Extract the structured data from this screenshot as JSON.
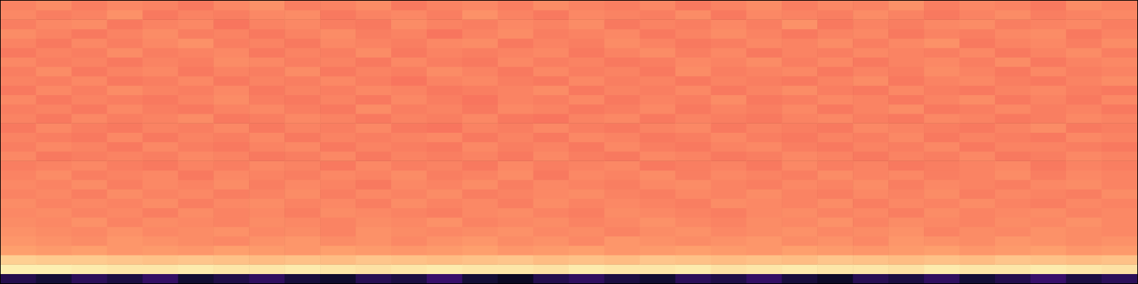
{
  "chart_data": {
    "type": "heatmap",
    "tick_labels": false,
    "color_range": [
      0,
      1
    ],
    "cells": [
      [
        0.74,
        0.76,
        0.73,
        0.75,
        0.74,
        0.72,
        0.75,
        0.77,
        0.73,
        0.74,
        0.76,
        0.72,
        0.74,
        0.75,
        0.73,
        0.76,
        0.74,
        0.73,
        0.75,
        0.72,
        0.74,
        0.76,
        0.73,
        0.75,
        0.74,
        0.77,
        0.73,
        0.75,
        0.74,
        0.72,
        0.76,
        0.74
      ],
      [
        0.75,
        0.73,
        0.74,
        0.77,
        0.72,
        0.74,
        0.73,
        0.75,
        0.76,
        0.72,
        0.74,
        0.75,
        0.73,
        0.77,
        0.74,
        0.72,
        0.75,
        0.74,
        0.73,
        0.76,
        0.72,
        0.75,
        0.74,
        0.73,
        0.76,
        0.74,
        0.72,
        0.74,
        0.76,
        0.73,
        0.74,
        0.75
      ],
      [
        0.73,
        0.75,
        0.76,
        0.72,
        0.74,
        0.75,
        0.71,
        0.74,
        0.75,
        0.73,
        0.72,
        0.76,
        0.74,
        0.73,
        0.75,
        0.74,
        0.76,
        0.72,
        0.74,
        0.73,
        0.75,
        0.73,
        0.77,
        0.72,
        0.74,
        0.73,
        0.75,
        0.76,
        0.73,
        0.74,
        0.75,
        0.73
      ],
      [
        0.76,
        0.74,
        0.72,
        0.74,
        0.76,
        0.73,
        0.74,
        0.72,
        0.74,
        0.76,
        0.73,
        0.74,
        0.71,
        0.74,
        0.76,
        0.73,
        0.74,
        0.75,
        0.72,
        0.74,
        0.76,
        0.74,
        0.72,
        0.74,
        0.75,
        0.72,
        0.74,
        0.73,
        0.75,
        0.76,
        0.72,
        0.74
      ],
      [
        0.74,
        0.72,
        0.75,
        0.73,
        0.75,
        0.77,
        0.73,
        0.74,
        0.72,
        0.75,
        0.74,
        0.73,
        0.75,
        0.76,
        0.72,
        0.74,
        0.73,
        0.76,
        0.74,
        0.72,
        0.73,
        0.75,
        0.74,
        0.76,
        0.73,
        0.75,
        0.77,
        0.72,
        0.74,
        0.75,
        0.73,
        0.76
      ],
      [
        0.72,
        0.74,
        0.73,
        0.76,
        0.73,
        0.74,
        0.75,
        0.72,
        0.74,
        0.73,
        0.76,
        0.72,
        0.74,
        0.73,
        0.74,
        0.75,
        0.72,
        0.74,
        0.76,
        0.73,
        0.75,
        0.72,
        0.74,
        0.73,
        0.75,
        0.74,
        0.73,
        0.75,
        0.72,
        0.74,
        0.76,
        0.73
      ],
      [
        0.75,
        0.73,
        0.74,
        0.72,
        0.74,
        0.73,
        0.76,
        0.75,
        0.73,
        0.74,
        0.72,
        0.75,
        0.73,
        0.72,
        0.75,
        0.73,
        0.74,
        0.72,
        0.73,
        0.75,
        0.74,
        0.76,
        0.73,
        0.75,
        0.72,
        0.74,
        0.75,
        0.73,
        0.76,
        0.72,
        0.74,
        0.75
      ],
      [
        0.73,
        0.76,
        0.72,
        0.74,
        0.75,
        0.72,
        0.74,
        0.73,
        0.76,
        0.72,
        0.74,
        0.73,
        0.76,
        0.74,
        0.72,
        0.75,
        0.73,
        0.74,
        0.72,
        0.76,
        0.73,
        0.74,
        0.75,
        0.72,
        0.74,
        0.73,
        0.76,
        0.74,
        0.72,
        0.75,
        0.73,
        0.74
      ],
      [
        0.74,
        0.73,
        0.75,
        0.72,
        0.73,
        0.75,
        0.72,
        0.74,
        0.73,
        0.75,
        0.73,
        0.71,
        0.74,
        0.75,
        0.73,
        0.72,
        0.75,
        0.73,
        0.74,
        0.72,
        0.74,
        0.73,
        0.72,
        0.74,
        0.76,
        0.72,
        0.74,
        0.75,
        0.73,
        0.72,
        0.74,
        0.76
      ],
      [
        0.72,
        0.75,
        0.73,
        0.76,
        0.74,
        0.73,
        0.75,
        0.72,
        0.74,
        0.73,
        0.75,
        0.74,
        0.72,
        0.73,
        0.74,
        0.76,
        0.72,
        0.74,
        0.73,
        0.75,
        0.72,
        0.74,
        0.76,
        0.73,
        0.72,
        0.75,
        0.73,
        0.72,
        0.74,
        0.75,
        0.73,
        0.72
      ],
      [
        0.75,
        0.72,
        0.74,
        0.73,
        0.72,
        0.74,
        0.76,
        0.73,
        0.72,
        0.74,
        0.72,
        0.75,
        0.73,
        0.71,
        0.74,
        0.73,
        0.75,
        0.72,
        0.74,
        0.73,
        0.76,
        0.72,
        0.73,
        0.75,
        0.74,
        0.72,
        0.74,
        0.76,
        0.72,
        0.74,
        0.72,
        0.75
      ],
      [
        0.73,
        0.74,
        0.72,
        0.75,
        0.73,
        0.72,
        0.74,
        0.75,
        0.73,
        0.72,
        0.76,
        0.73,
        0.74,
        0.72,
        0.75,
        0.74,
        0.72,
        0.73,
        0.75,
        0.72,
        0.74,
        0.73,
        0.75,
        0.72,
        0.74,
        0.76,
        0.72,
        0.73,
        0.75,
        0.73,
        0.74,
        0.72
      ],
      [
        0.74,
        0.72,
        0.75,
        0.73,
        0.74,
        0.76,
        0.72,
        0.73,
        0.75,
        0.74,
        0.72,
        0.74,
        0.73,
        0.75,
        0.72,
        0.71,
        0.74,
        0.75,
        0.72,
        0.74,
        0.73,
        0.72,
        0.74,
        0.75,
        0.73,
        0.72,
        0.75,
        0.74,
        0.72,
        0.73,
        0.75,
        0.74
      ],
      [
        0.72,
        0.75,
        0.73,
        0.72,
        0.74,
        0.73,
        0.75,
        0.72,
        0.74,
        0.73,
        0.75,
        0.72,
        0.71,
        0.74,
        0.73,
        0.75,
        0.73,
        0.72,
        0.74,
        0.75,
        0.72,
        0.74,
        0.73,
        0.72,
        0.75,
        0.74,
        0.73,
        0.72,
        0.74,
        0.76,
        0.72,
        0.73
      ],
      [
        0.74,
        0.73,
        0.72,
        0.75,
        0.72,
        0.74,
        0.73,
        0.75,
        0.72,
        0.74,
        0.73,
        0.74,
        0.75,
        0.72,
        0.74,
        0.72,
        0.75,
        0.74,
        0.72,
        0.73,
        0.75,
        0.73,
        0.72,
        0.74,
        0.73,
        0.75,
        0.72,
        0.74,
        0.73,
        0.72,
        0.75,
        0.74
      ],
      [
        0.73,
        0.75,
        0.74,
        0.72,
        0.75,
        0.73,
        0.72,
        0.74,
        0.75,
        0.72,
        0.74,
        0.73,
        0.72,
        0.75,
        0.73,
        0.74,
        0.72,
        0.75,
        0.73,
        0.72,
        0.74,
        0.75,
        0.73,
        0.72,
        0.74,
        0.73,
        0.75,
        0.72,
        0.74,
        0.74,
        0.73,
        0.72
      ],
      [
        0.75,
        0.72,
        0.73,
        0.74,
        0.73,
        0.75,
        0.74,
        0.72,
        0.73,
        0.75,
        0.72,
        0.74,
        0.73,
        0.74,
        0.72,
        0.75,
        0.73,
        0.72,
        0.75,
        0.74,
        0.72,
        0.73,
        0.75,
        0.74,
        0.72,
        0.74,
        0.73,
        0.75,
        0.72,
        0.73,
        0.75,
        0.74
      ],
      [
        0.73,
        0.74,
        0.75,
        0.73,
        0.72,
        0.74,
        0.73,
        0.75,
        0.74,
        0.72,
        0.75,
        0.73,
        0.74,
        0.72,
        0.75,
        0.73,
        0.74,
        0.75,
        0.72,
        0.73,
        0.74,
        0.72,
        0.75,
        0.73,
        0.74,
        0.72,
        0.73,
        0.74,
        0.75,
        0.72,
        0.74,
        0.73
      ],
      [
        0.74,
        0.76,
        0.73,
        0.74,
        0.75,
        0.72,
        0.75,
        0.74,
        0.73,
        0.75,
        0.74,
        0.76,
        0.73,
        0.74,
        0.76,
        0.72,
        0.75,
        0.74,
        0.76,
        0.73,
        0.75,
        0.74,
        0.73,
        0.76,
        0.74,
        0.75,
        0.73,
        0.74,
        0.76,
        0.73,
        0.75,
        0.74
      ],
      [
        0.75,
        0.74,
        0.76,
        0.73,
        0.75,
        0.74,
        0.76,
        0.73,
        0.75,
        0.74,
        0.72,
        0.75,
        0.74,
        0.76,
        0.73,
        0.75,
        0.74,
        0.73,
        0.75,
        0.76,
        0.74,
        0.73,
        0.75,
        0.74,
        0.76,
        0.73,
        0.75,
        0.74,
        0.73,
        0.75,
        0.76,
        0.74
      ],
      [
        0.74,
        0.75,
        0.73,
        0.76,
        0.74,
        0.75,
        0.73,
        0.74,
        0.76,
        0.73,
        0.75,
        0.74,
        0.76,
        0.73,
        0.74,
        0.75,
        0.76,
        0.74,
        0.73,
        0.75,
        0.74,
        0.76,
        0.74,
        0.73,
        0.75,
        0.74,
        0.76,
        0.73,
        0.75,
        0.74,
        0.73,
        0.76
      ],
      [
        0.76,
        0.74,
        0.75,
        0.74,
        0.76,
        0.73,
        0.75,
        0.76,
        0.74,
        0.75,
        0.73,
        0.76,
        0.74,
        0.75,
        0.73,
        0.76,
        0.74,
        0.75,
        0.74,
        0.73,
        0.76,
        0.75,
        0.74,
        0.76,
        0.73,
        0.75,
        0.74,
        0.76,
        0.74,
        0.73,
        0.75,
        0.74
      ],
      [
        0.75,
        0.76,
        0.74,
        0.75,
        0.73,
        0.76,
        0.74,
        0.75,
        0.73,
        0.76,
        0.75,
        0.74,
        0.73,
        0.75,
        0.76,
        0.74,
        0.73,
        0.76,
        0.75,
        0.74,
        0.73,
        0.75,
        0.76,
        0.74,
        0.75,
        0.73,
        0.76,
        0.74,
        0.75,
        0.76,
        0.74,
        0.75
      ],
      [
        0.76,
        0.75,
        0.77,
        0.74,
        0.76,
        0.75,
        0.74,
        0.76,
        0.75,
        0.74,
        0.76,
        0.75,
        0.77,
        0.74,
        0.75,
        0.76,
        0.74,
        0.75,
        0.77,
        0.75,
        0.74,
        0.76,
        0.75,
        0.77,
        0.74,
        0.76,
        0.75,
        0.74,
        0.76,
        0.75,
        0.77,
        0.75
      ],
      [
        0.77,
        0.76,
        0.75,
        0.77,
        0.75,
        0.76,
        0.77,
        0.75,
        0.76,
        0.74,
        0.77,
        0.76,
        0.75,
        0.76,
        0.77,
        0.75,
        0.76,
        0.74,
        0.76,
        0.77,
        0.75,
        0.76,
        0.77,
        0.75,
        0.76,
        0.77,
        0.74,
        0.76,
        0.75,
        0.77,
        0.76,
        0.75
      ],
      [
        0.78,
        0.77,
        0.76,
        0.78,
        0.77,
        0.76,
        0.75,
        0.77,
        0.78,
        0.76,
        0.77,
        0.75,
        0.77,
        0.78,
        0.76,
        0.77,
        0.75,
        0.78,
        0.77,
        0.76,
        0.77,
        0.78,
        0.76,
        0.77,
        0.75,
        0.78,
        0.77,
        0.76,
        0.78,
        0.77,
        0.76,
        0.77
      ],
      [
        0.8,
        0.79,
        0.8,
        0.78,
        0.79,
        0.78,
        0.8,
        0.79,
        0.78,
        0.8,
        0.79,
        0.78,
        0.79,
        0.8,
        0.78,
        0.79,
        0.8,
        0.78,
        0.79,
        0.8,
        0.79,
        0.78,
        0.8,
        0.79,
        0.78,
        0.79,
        0.8,
        0.78,
        0.79,
        0.8,
        0.78,
        0.79
      ],
      [
        0.9,
        0.89,
        0.89,
        0.88,
        0.87,
        0.88,
        0.87,
        0.86,
        0.87,
        0.86,
        0.88,
        0.87,
        0.86,
        0.87,
        0.88,
        0.86,
        0.87,
        0.86,
        0.88,
        0.87,
        0.86,
        0.87,
        0.86,
        0.88,
        0.87,
        0.86,
        0.87,
        0.86,
        0.88,
        0.87,
        0.86,
        0.87
      ],
      [
        0.97,
        0.97,
        0.96,
        0.95,
        0.95,
        0.96,
        0.95,
        0.95,
        0.96,
        0.95,
        0.94,
        0.95,
        0.96,
        0.95,
        0.95,
        0.94,
        0.96,
        0.95,
        0.95,
        0.96,
        0.94,
        0.95,
        0.96,
        0.95,
        0.95,
        0.94,
        0.96,
        0.95,
        0.95,
        0.96,
        0.95,
        0.94
      ],
      [
        0.14,
        0.1,
        0.16,
        0.12,
        0.18,
        0.09,
        0.13,
        0.17,
        0.11,
        0.08,
        0.15,
        0.12,
        0.19,
        0.1,
        0.06,
        0.14,
        0.17,
        0.12,
        0.09,
        0.16,
        0.13,
        0.18,
        0.11,
        0.07,
        0.15,
        0.12,
        0.17,
        0.1,
        0.14,
        0.19,
        0.12,
        0.16
      ]
    ]
  }
}
